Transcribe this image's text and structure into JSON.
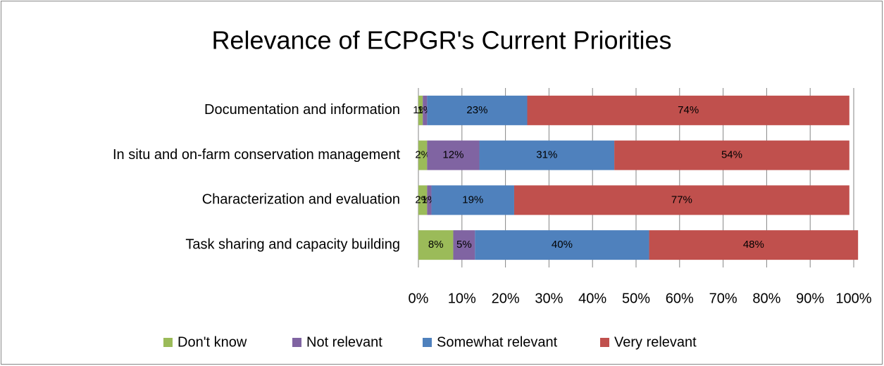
{
  "chart_data": {
    "type": "bar",
    "orientation": "horizontal",
    "stacked": true,
    "title": "Relevance of ECPGR's Current Priorities",
    "categories": [
      "Documentation and information",
      "In situ and on-farm conservation management",
      "Characterization and evaluation",
      "Task sharing and capacity building"
    ],
    "series": [
      {
        "name": "Don't know",
        "color": "#9bbb59",
        "values": [
          1,
          2,
          2,
          8
        ],
        "value_labels": [
          "1%",
          "2%",
          "2%",
          "8%"
        ]
      },
      {
        "name": "Not relevant",
        "color": "#8064a2",
        "values": [
          1,
          12,
          1,
          5
        ],
        "value_labels": [
          "1%",
          "12%",
          "1%",
          "5%"
        ]
      },
      {
        "name": "Somewhat relevant",
        "color": "#4f81bd",
        "values": [
          23,
          31,
          19,
          40
        ],
        "value_labels": [
          "23%",
          "31%",
          "19%",
          "40%"
        ]
      },
      {
        "name": "Very relevant",
        "color": "#c0504d",
        "values": [
          74,
          54,
          77,
          48
        ],
        "value_labels": [
          "74%",
          "54%",
          "77%",
          "48%"
        ]
      }
    ],
    "xlim": [
      0,
      100
    ],
    "xticks": [
      {
        "value": 0,
        "label": "0%"
      },
      {
        "value": 10,
        "label": "10%"
      },
      {
        "value": 20,
        "label": "20%"
      },
      {
        "value": 30,
        "label": "30%"
      },
      {
        "value": 40,
        "label": "40%"
      },
      {
        "value": 50,
        "label": "50%"
      },
      {
        "value": 60,
        "label": "60%"
      },
      {
        "value": 70,
        "label": "70%"
      },
      {
        "value": 80,
        "label": "80%"
      },
      {
        "value": 90,
        "label": "90%"
      },
      {
        "value": 100,
        "label": "100%"
      }
    ],
    "grid": true,
    "legend": "bottom"
  }
}
